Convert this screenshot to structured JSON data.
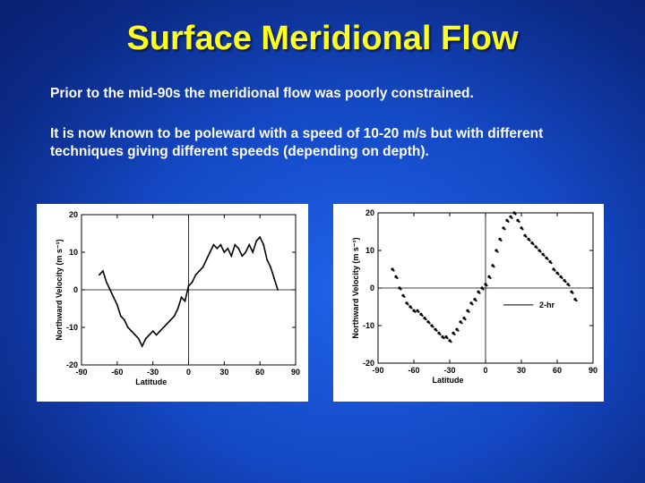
{
  "slide": {
    "title": "Surface Meridional Flow",
    "paragraph1": "Prior to the mid-90s the meridional flow was poorly constrained.",
    "paragraph2": "It is now known to be poleward with a speed of 10-20 m/s but with different techniques giving different speeds (depending on depth)."
  },
  "chart_data": [
    {
      "type": "line",
      "xlabel": "Latitude",
      "ylabel": "Northward Velocity (m s⁻¹)",
      "xlim": [
        -90,
        90
      ],
      "ylim": [
        -20,
        20
      ],
      "xticks": [
        "-90",
        "-60",
        "-30",
        "0",
        "30",
        "60",
        "90"
      ],
      "yticks": [
        "20",
        "10",
        "0",
        "-10",
        "-20"
      ],
      "grid": false,
      "x": [
        -75,
        -72,
        -69,
        -66,
        -63,
        -60,
        -57,
        -54,
        -51,
        -48,
        -45,
        -42,
        -39,
        -36,
        -33,
        -30,
        -27,
        -24,
        -21,
        -18,
        -15,
        -12,
        -9,
        -6,
        -3,
        0,
        3,
        6,
        9,
        12,
        15,
        18,
        21,
        24,
        27,
        30,
        33,
        36,
        39,
        42,
        45,
        48,
        51,
        54,
        57,
        60,
        63,
        66,
        69,
        72,
        75
      ],
      "y": [
        4,
        5,
        2,
        0,
        -2,
        -4,
        -7,
        -8,
        -10,
        -11,
        -12,
        -13,
        -15,
        -13,
        -12,
        -11,
        -12,
        -11,
        -10,
        -9,
        -8,
        -7,
        -5,
        -2,
        -3,
        1,
        2,
        4,
        5,
        6,
        8,
        10,
        12,
        11,
        12,
        10,
        11,
        9,
        12,
        11,
        9,
        10,
        12,
        10,
        13,
        14,
        12,
        8,
        6,
        3,
        0
      ]
    },
    {
      "type": "scatter",
      "xlabel": "Latitude",
      "ylabel": "Northward Velocity (m s⁻¹)",
      "xlim": [
        -90,
        90
      ],
      "ylim": [
        -20,
        20
      ],
      "xticks": [
        "-90",
        "-60",
        "-30",
        "0",
        "30",
        "60",
        "90"
      ],
      "yticks": [
        "20",
        "10",
        "0",
        "-10",
        "-20"
      ],
      "grid": false,
      "legend": "2-hr",
      "x": [
        -78,
        -75,
        -72,
        -69,
        -66,
        -63,
        -60,
        -57,
        -54,
        -51,
        -48,
        -45,
        -42,
        -39,
        -36,
        -33,
        -30,
        -27,
        -24,
        -21,
        -18,
        -15,
        -12,
        -9,
        -6,
        -3,
        0,
        3,
        6,
        9,
        12,
        15,
        18,
        21,
        24,
        27,
        30,
        33,
        36,
        39,
        42,
        45,
        48,
        51,
        54,
        57,
        60,
        63,
        66,
        69,
        72,
        75
      ],
      "y": [
        5,
        3,
        0,
        -2,
        -4,
        -5,
        -6,
        -6,
        -7,
        -8,
        -9,
        -10,
        -11,
        -12,
        -13,
        -13,
        -14,
        -12,
        -11,
        -9,
        -8,
        -6,
        -4,
        -3,
        -1,
        0,
        1,
        3,
        6,
        10,
        13,
        16,
        18,
        19,
        20,
        18,
        16,
        14,
        13,
        12,
        11,
        10,
        9,
        8,
        7,
        5,
        4,
        3,
        2,
        1,
        -1,
        -3
      ]
    }
  ]
}
